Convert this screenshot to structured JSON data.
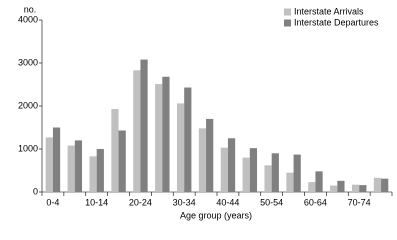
{
  "chart_data": {
    "type": "bar",
    "y_axis_label": "no.",
    "x_axis_label": "Age group (years)",
    "categories": [
      "0-4",
      null,
      "10-14",
      null,
      "20-24",
      null,
      "30-34",
      null,
      "40-44",
      null,
      "50-54",
      null,
      "60-64",
      null,
      "70-74",
      null
    ],
    "series": [
      {
        "name": "Interstate Arrivals",
        "color": "#c0c0c0",
        "values": [
          1270,
          1080,
          830,
          1930,
          2830,
          2510,
          2060,
          1480,
          1030,
          800,
          620,
          450,
          230,
          150,
          170,
          330
        ]
      },
      {
        "name": "Interstate Departures",
        "color": "#808080",
        "values": [
          1500,
          1200,
          1000,
          1430,
          3080,
          2680,
          2430,
          1700,
          1250,
          1020,
          900,
          870,
          480,
          260,
          160,
          310
        ]
      }
    ],
    "ylim": [
      0,
      4000
    ],
    "yticks": [
      0,
      1000,
      2000,
      3000,
      4000
    ],
    "legend": "top-right"
  }
}
